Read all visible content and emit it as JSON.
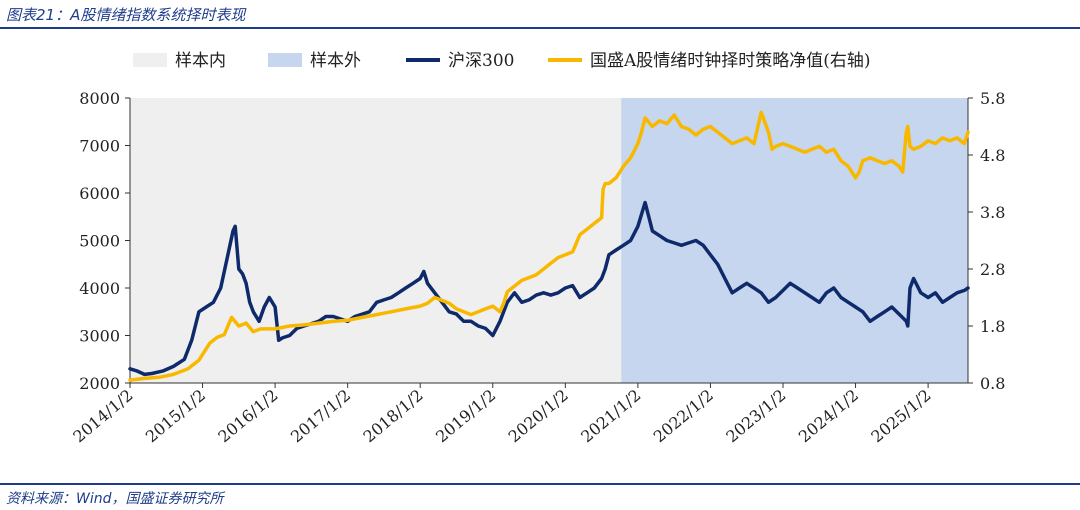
{
  "figure": {
    "title": "图表21：A股情绪指数系统择时表现",
    "source": "资料来源：Wind，国盛证券研究所"
  },
  "chart_data": {
    "type": "line",
    "legend": {
      "placement": "top",
      "entries": [
        "样本内",
        "样本外",
        "沪深300",
        "国盛A股情绪时钟择时策略净值(右轴)"
      ]
    },
    "colors": {
      "in_sample": "#efefef",
      "out_sample": "#c6d6ee",
      "hs300": "#0f2a6b",
      "strategy": "#f9b800"
    },
    "x_ticks": [
      "2014/1/2",
      "2015/1/2",
      "2016/1/2",
      "2017/1/2",
      "2018/1/2",
      "2019/1/2",
      "2020/1/2",
      "2021/1/2",
      "2022/1/2",
      "2023/1/2",
      "2024/1/2",
      "2025/1/2"
    ],
    "x_range": [
      2014.0,
      2025.55
    ],
    "left_axis": {
      "ylim": [
        2000,
        8000
      ],
      "ticks": [
        "2000",
        "3000",
        "4000",
        "5000",
        "6000",
        "7000",
        "8000"
      ]
    },
    "right_axis": {
      "ylim": [
        0.8,
        5.8
      ],
      "ticks": [
        "0.8",
        "1.8",
        "2.8",
        "3.8",
        "4.8",
        "5.8"
      ]
    },
    "regions": [
      {
        "name": "样本内",
        "x_start": 2014.0,
        "x_end": 2020.77
      },
      {
        "name": "样本外",
        "x_start": 2020.77,
        "x_end": 2025.55
      }
    ],
    "series": [
      {
        "name": "沪深300",
        "axis": "left",
        "x": [
          2014.0,
          2014.1,
          2014.2,
          2014.3,
          2014.45,
          2014.6,
          2014.75,
          2014.85,
          2014.95,
          2015.05,
          2015.15,
          2015.25,
          2015.35,
          2015.42,
          2015.45,
          2015.5,
          2015.55,
          2015.6,
          2015.65,
          2015.7,
          2015.78,
          2015.85,
          2015.92,
          2016.0,
          2016.05,
          2016.1,
          2016.2,
          2016.3,
          2016.4,
          2016.5,
          2016.6,
          2016.7,
          2016.8,
          2016.9,
          2017.0,
          2017.1,
          2017.2,
          2017.3,
          2017.4,
          2017.5,
          2017.6,
          2017.7,
          2017.8,
          2017.9,
          2018.0,
          2018.05,
          2018.1,
          2018.2,
          2018.3,
          2018.4,
          2018.5,
          2018.6,
          2018.7,
          2018.8,
          2018.9,
          2019.0,
          2019.1,
          2019.2,
          2019.25,
          2019.3,
          2019.4,
          2019.5,
          2019.6,
          2019.7,
          2019.8,
          2019.9,
          2020.0,
          2020.1,
          2020.2,
          2020.3,
          2020.4,
          2020.5,
          2020.55,
          2020.6,
          2020.7,
          2020.8,
          2020.9,
          2021.0,
          2021.05,
          2021.1,
          2021.15,
          2021.2,
          2021.3,
          2021.4,
          2021.5,
          2021.6,
          2021.7,
          2021.8,
          2021.9,
          2022.0,
          2022.1,
          2022.2,
          2022.3,
          2022.4,
          2022.5,
          2022.6,
          2022.7,
          2022.8,
          2022.9,
          2023.0,
          2023.1,
          2023.2,
          2023.3,
          2023.4,
          2023.5,
          2023.6,
          2023.7,
          2023.8,
          2023.9,
          2024.0,
          2024.1,
          2024.2,
          2024.3,
          2024.4,
          2024.5,
          2024.6,
          2024.7,
          2024.72,
          2024.75,
          2024.8,
          2024.9,
          2025.0,
          2025.1,
          2025.2,
          2025.3,
          2025.4,
          2025.5,
          2025.55
        ],
        "values": [
          2300,
          2250,
          2180,
          2200,
          2250,
          2350,
          2500,
          2900,
          3500,
          3600,
          3700,
          4000,
          4700,
          5200,
          5300,
          4400,
          4300,
          4100,
          3700,
          3500,
          3300,
          3600,
          3800,
          3600,
          2900,
          2950,
          3000,
          3150,
          3200,
          3250,
          3300,
          3400,
          3400,
          3350,
          3300,
          3400,
          3450,
          3500,
          3700,
          3750,
          3800,
          3900,
          4000,
          4100,
          4200,
          4350,
          4100,
          3900,
          3700,
          3500,
          3450,
          3300,
          3300,
          3200,
          3150,
          3000,
          3300,
          3700,
          3800,
          3900,
          3700,
          3750,
          3850,
          3900,
          3850,
          3900,
          4000,
          4050,
          3800,
          3900,
          4000,
          4200,
          4400,
          4700,
          4800,
          4900,
          5000,
          5300,
          5550,
          5800,
          5500,
          5200,
          5100,
          5000,
          4950,
          4900,
          4950,
          5000,
          4900,
          4700,
          4500,
          4200,
          3900,
          4000,
          4100,
          4000,
          3900,
          3700,
          3800,
          3950,
          4100,
          4000,
          3900,
          3800,
          3700,
          3900,
          4000,
          3800,
          3700,
          3600,
          3500,
          3300,
          3400,
          3500,
          3600,
          3450,
          3300,
          3200,
          4000,
          4200,
          3900,
          3800,
          3900,
          3700,
          3800,
          3900,
          3950,
          4000
        ]
      },
      {
        "name": "国盛A股情绪时钟择时策略净值(右轴)",
        "axis": "right",
        "x": [
          2014.0,
          2014.2,
          2014.4,
          2014.6,
          2014.8,
          2014.95,
          2015.1,
          2015.2,
          2015.3,
          2015.4,
          2015.5,
          2015.6,
          2015.7,
          2015.8,
          2016.0,
          2016.2,
          2016.4,
          2016.6,
          2016.8,
          2017.0,
          2017.2,
          2017.4,
          2017.6,
          2017.8,
          2018.0,
          2018.1,
          2018.2,
          2018.3,
          2018.4,
          2018.5,
          2018.6,
          2018.7,
          2018.8,
          2018.9,
          2019.0,
          2019.1,
          2019.15,
          2019.2,
          2019.3,
          2019.4,
          2019.5,
          2019.6,
          2019.7,
          2019.8,
          2019.9,
          2020.0,
          2020.1,
          2020.2,
          2020.3,
          2020.4,
          2020.5,
          2020.52,
          2020.55,
          2020.6,
          2020.7,
          2020.8,
          2020.9,
          2021.0,
          2021.05,
          2021.1,
          2021.2,
          2021.3,
          2021.4,
          2021.5,
          2021.6,
          2021.7,
          2021.8,
          2021.9,
          2022.0,
          2022.1,
          2022.2,
          2022.3,
          2022.4,
          2022.5,
          2022.6,
          2022.7,
          2022.8,
          2022.85,
          2022.9,
          2023.0,
          2023.1,
          2023.2,
          2023.3,
          2023.4,
          2023.5,
          2023.6,
          2023.7,
          2023.8,
          2023.9,
          2024.0,
          2024.05,
          2024.1,
          2024.2,
          2024.3,
          2024.4,
          2024.5,
          2024.6,
          2024.65,
          2024.7,
          2024.72,
          2024.75,
          2024.8,
          2024.9,
          2025.0,
          2025.1,
          2025.2,
          2025.3,
          2025.4,
          2025.5,
          2025.55
        ],
        "values": [
          0.85,
          0.88,
          0.9,
          0.95,
          1.05,
          1.2,
          1.5,
          1.6,
          1.65,
          1.95,
          1.8,
          1.85,
          1.7,
          1.75,
          1.75,
          1.8,
          1.82,
          1.85,
          1.88,
          1.9,
          1.95,
          2.0,
          2.05,
          2.1,
          2.15,
          2.2,
          2.3,
          2.25,
          2.2,
          2.1,
          2.05,
          2.0,
          2.05,
          2.1,
          2.15,
          2.05,
          2.2,
          2.4,
          2.5,
          2.6,
          2.65,
          2.7,
          2.8,
          2.9,
          3.0,
          3.05,
          3.1,
          3.4,
          3.5,
          3.6,
          3.7,
          4.2,
          4.3,
          4.3,
          4.4,
          4.6,
          4.75,
          5.0,
          5.2,
          5.45,
          5.3,
          5.4,
          5.35,
          5.5,
          5.3,
          5.25,
          5.15,
          5.25,
          5.3,
          5.2,
          5.1,
          5.0,
          5.05,
          5.1,
          5.0,
          5.55,
          5.2,
          4.9,
          4.95,
          5.0,
          4.95,
          4.9,
          4.85,
          4.9,
          4.95,
          4.85,
          4.9,
          4.7,
          4.6,
          4.4,
          4.5,
          4.7,
          4.75,
          4.7,
          4.65,
          4.7,
          4.6,
          4.5,
          5.2,
          5.3,
          4.95,
          4.9,
          4.95,
          5.05,
          5.0,
          5.1,
          5.05,
          5.1,
          5.0,
          5.2
        ]
      }
    ]
  }
}
